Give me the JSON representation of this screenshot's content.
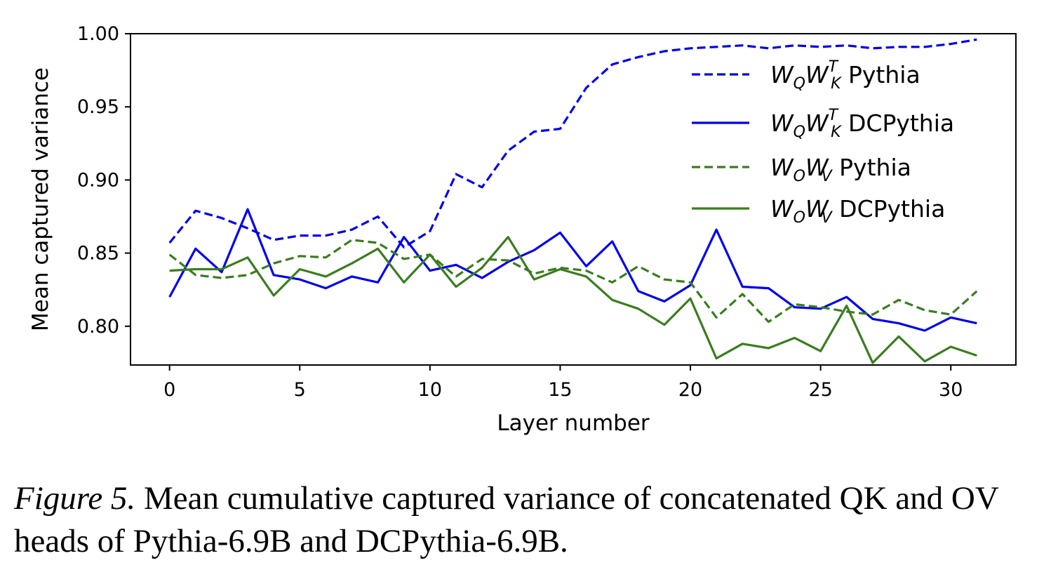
{
  "chart_data": {
    "type": "line",
    "xlabel": "Layer number",
    "ylabel": "Mean captured variance",
    "xlim": [
      -1.5,
      32.5
    ],
    "ylim": [
      0.7735,
      1.0
    ],
    "xticks": [
      0,
      5,
      10,
      15,
      20,
      25,
      30
    ],
    "xtick_labels": [
      "0",
      "5",
      "10",
      "15",
      "20",
      "25",
      "30"
    ],
    "yticks": [
      0.8,
      0.85,
      0.9,
      0.95,
      1.0
    ],
    "ytick_labels": [
      "0.80",
      "0.85",
      "0.90",
      "0.95",
      "1.00"
    ],
    "grid": false,
    "legend_position": "top-right",
    "x": [
      0,
      1,
      2,
      3,
      4,
      5,
      6,
      7,
      8,
      9,
      10,
      11,
      12,
      13,
      14,
      15,
      16,
      17,
      18,
      19,
      20,
      21,
      22,
      23,
      24,
      25,
      26,
      27,
      28,
      29,
      30,
      31
    ],
    "series": [
      {
        "name": "W_Q W_K^T Pythia",
        "label_main": "W",
        "label_sub1": "Q",
        "label_main2": "W",
        "label_sub2": "K",
        "label_sup2": "T",
        "label_model": " Pythia",
        "color": "#0000ee",
        "style": "dashed",
        "values": [
          0.857,
          0.879,
          0.874,
          0.867,
          0.859,
          0.862,
          0.862,
          0.866,
          0.875,
          0.854,
          0.865,
          0.904,
          0.895,
          0.92,
          0.933,
          0.935,
          0.963,
          0.979,
          0.984,
          0.988,
          0.99,
          0.991,
          0.992,
          0.99,
          0.992,
          0.991,
          0.992,
          0.99,
          0.991,
          0.991,
          0.993,
          0.996
        ]
      },
      {
        "name": "W_Q W_K^T DCPythia",
        "label_main": "W",
        "label_sub1": "Q",
        "label_main2": "W",
        "label_sub2": "K",
        "label_sup2": "T",
        "label_model": " DCPythia",
        "color": "#0000ee",
        "style": "solid",
        "values": [
          0.82,
          0.853,
          0.837,
          0.88,
          0.835,
          0.832,
          0.826,
          0.834,
          0.83,
          0.861,
          0.838,
          0.842,
          0.833,
          0.844,
          0.852,
          0.864,
          0.841,
          0.858,
          0.824,
          0.817,
          0.828,
          0.866,
          0.827,
          0.826,
          0.813,
          0.812,
          0.82,
          0.805,
          0.802,
          0.797,
          0.806,
          0.802
        ]
      },
      {
        "name": "W_O W_V Pythia",
        "label_main": "W",
        "label_sub1": "O",
        "label_main2": "W",
        "label_sub2": "V",
        "label_sup2": "",
        "label_model": " Pythia",
        "color": "#3a7d1e",
        "style": "dashed",
        "values": [
          0.849,
          0.835,
          0.833,
          0.835,
          0.843,
          0.848,
          0.847,
          0.859,
          0.857,
          0.846,
          0.849,
          0.834,
          0.846,
          0.845,
          0.836,
          0.84,
          0.838,
          0.83,
          0.841,
          0.832,
          0.83,
          0.806,
          0.822,
          0.803,
          0.815,
          0.813,
          0.81,
          0.808,
          0.818,
          0.811,
          0.808,
          0.824
        ]
      },
      {
        "name": "W_O W_V DCPythia",
        "label_main": "W",
        "label_sub1": "O",
        "label_main2": "W",
        "label_sub2": "V",
        "label_sup2": "",
        "label_model": " DCPythia",
        "color": "#3a7d1e",
        "style": "solid",
        "values": [
          0.838,
          0.839,
          0.839,
          0.847,
          0.821,
          0.839,
          0.834,
          0.843,
          0.853,
          0.83,
          0.849,
          0.827,
          0.84,
          0.861,
          0.832,
          0.839,
          0.834,
          0.818,
          0.812,
          0.801,
          0.819,
          0.778,
          0.788,
          0.785,
          0.792,
          0.783,
          0.814,
          0.775,
          0.793,
          0.776,
          0.786,
          0.78
        ]
      }
    ]
  },
  "caption": {
    "label": "Figure 5.",
    "text": " Mean cumulative captured variance of concatenated QK and OV heads of Pythia-6.9B and DCPythia-6.9B."
  }
}
